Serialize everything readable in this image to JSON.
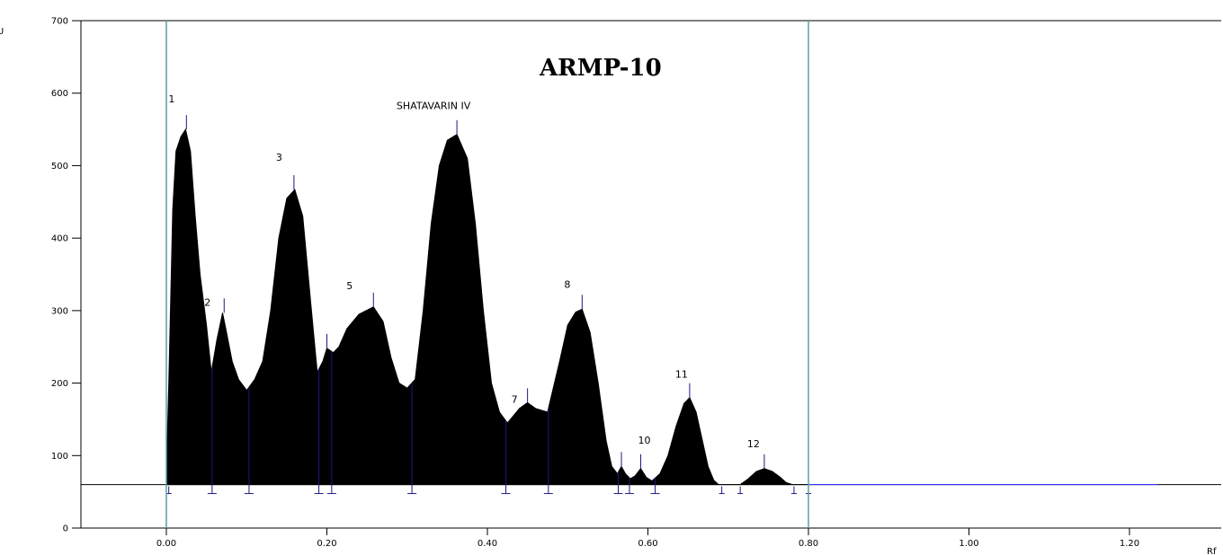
{
  "chart_data": {
    "type": "line",
    "title": "ARMP-10",
    "ylabel": "AU",
    "xlabel": "Rf",
    "xlim": [
      -0.11,
      1.32
    ],
    "ylim": [
      0,
      700
    ],
    "x_ticks": [
      0.0,
      0.2,
      0.4,
      0.6,
      0.8,
      1.0,
      1.2
    ],
    "x_tick_labels": [
      "0.00",
      "0.20",
      "0.40",
      "0.60",
      "0.80",
      "1.00",
      "1.20"
    ],
    "y_ticks": [
      0,
      100,
      200,
      300,
      400,
      500,
      600,
      700
    ],
    "y_tick_labels": [
      "0",
      "100",
      "200",
      "300",
      "400",
      "500",
      "600",
      "700"
    ],
    "baseline": 60,
    "front_lines": [
      0.0,
      0.8
    ],
    "colors": {
      "fill": "#000000",
      "front_line": "#5f9ea0",
      "tail": "#3333ff",
      "markers": "#1a1a80"
    },
    "peaks": [
      {
        "label": "1",
        "rf": 0.025,
        "height": 550
      },
      {
        "label": "2",
        "rf": 0.072,
        "height": 297
      },
      {
        "label": "3",
        "rf": 0.159,
        "height": 467
      },
      {
        "label": "",
        "rf": 0.2,
        "height": 248
      },
      {
        "label": "5",
        "rf": 0.258,
        "height": 305
      },
      {
        "label": "SHATAVARIN IV",
        "rf": 0.362,
        "height": 543
      },
      {
        "label": "7",
        "rf": 0.45,
        "height": 173
      },
      {
        "label": "8",
        "rf": 0.518,
        "height": 302
      },
      {
        "label": "",
        "rf": 0.567,
        "height": 85
      },
      {
        "label": "10",
        "rf": 0.591,
        "height": 82
      },
      {
        "label": "11",
        "rf": 0.652,
        "height": 180
      },
      {
        "label": "12",
        "rf": 0.745,
        "height": 82
      }
    ],
    "trace": {
      "x": [
        0.0,
        0.003,
        0.008,
        0.012,
        0.018,
        0.024,
        0.03,
        0.036,
        0.042,
        0.05,
        0.056,
        0.063,
        0.07,
        0.075,
        0.082,
        0.09,
        0.1,
        0.11,
        0.12,
        0.13,
        0.14,
        0.15,
        0.16,
        0.17,
        0.18,
        0.188,
        0.195,
        0.2,
        0.208,
        0.215,
        0.225,
        0.24,
        0.258,
        0.27,
        0.28,
        0.29,
        0.3,
        0.31,
        0.32,
        0.33,
        0.34,
        0.35,
        0.362,
        0.375,
        0.385,
        0.395,
        0.405,
        0.415,
        0.425,
        0.44,
        0.45,
        0.46,
        0.475,
        0.49,
        0.5,
        0.51,
        0.518,
        0.528,
        0.538,
        0.548,
        0.555,
        0.562,
        0.567,
        0.572,
        0.578,
        0.584,
        0.591,
        0.598,
        0.605,
        0.615,
        0.625,
        0.635,
        0.645,
        0.652,
        0.66,
        0.668,
        0.675,
        0.682,
        0.688,
        0.695,
        0.705,
        0.715,
        0.725,
        0.735,
        0.745,
        0.755,
        0.765,
        0.772,
        0.78,
        0.8,
        0.9,
        1.0,
        1.1,
        1.2,
        1.235
      ],
      "y": [
        75,
        200,
        440,
        520,
        540,
        550,
        520,
        430,
        350,
        280,
        215,
        260,
        297,
        270,
        230,
        205,
        190,
        205,
        230,
        300,
        400,
        455,
        467,
        430,
        310,
        215,
        230,
        248,
        242,
        250,
        275,
        295,
        305,
        285,
        235,
        200,
        193,
        205,
        300,
        420,
        500,
        535,
        543,
        510,
        420,
        300,
        200,
        160,
        145,
        165,
        173,
        165,
        160,
        230,
        280,
        298,
        302,
        270,
        200,
        120,
        85,
        75,
        85,
        75,
        68,
        72,
        82,
        70,
        65,
        75,
        100,
        140,
        172,
        180,
        160,
        120,
        85,
        66,
        60,
        60,
        60,
        60,
        68,
        78,
        82,
        78,
        70,
        63,
        60,
        60,
        60,
        60,
        60,
        60,
        60
      ]
    },
    "annotations": [
      "1",
      "2",
      "3",
      "5",
      "SHATAVARIN IV",
      "7",
      "8",
      "10",
      "11",
      "12"
    ]
  }
}
